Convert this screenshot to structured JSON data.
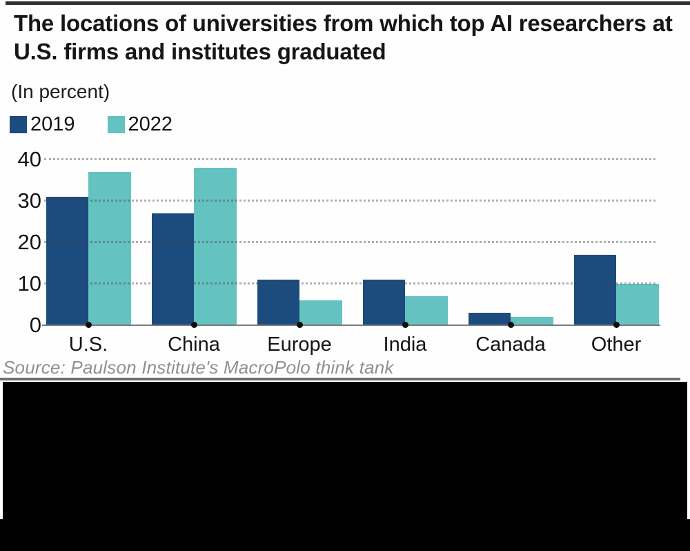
{
  "header": {
    "title": "The locations of universities from which top AI researchers at U.S. firms and institutes graduated",
    "subtitle": "(In percent)"
  },
  "legend": [
    {
      "label": "2019",
      "color": "#1c4b7d"
    },
    {
      "label": "2022",
      "color": "#64c2c0"
    }
  ],
  "chart_data": {
    "type": "bar",
    "title": "The locations of universities from which top AI researchers at U.S. firms and institutes graduated",
    "subtitle": "(In percent)",
    "categories": [
      "U.S.",
      "China",
      "Europe",
      "India",
      "Canada",
      "Other"
    ],
    "series": [
      {
        "name": "2019",
        "color": "#1c4b7d",
        "values": [
          31,
          27,
          11,
          11,
          3,
          17
        ]
      },
      {
        "name": "2022",
        "color": "#64c2c0",
        "values": [
          37,
          38,
          6,
          7,
          2,
          10
        ]
      }
    ],
    "xlabel": "",
    "ylabel": "",
    "ylim": [
      0,
      40
    ],
    "yticks": [
      0,
      10,
      20,
      30,
      40
    ],
    "grid": "horizontal-dotted",
    "legend_position": "top-left"
  },
  "source": {
    "text": "Source: Paulson Institute's MacroPolo think tank"
  },
  "colors": {
    "bar_2019": "#1c4b7d",
    "bar_2022": "#64c2c0",
    "gridline": "#5a5a5a",
    "axis_line": "#7a7a7a",
    "source_text": "#8f8f8f",
    "bottom_panel": "#000000"
  }
}
